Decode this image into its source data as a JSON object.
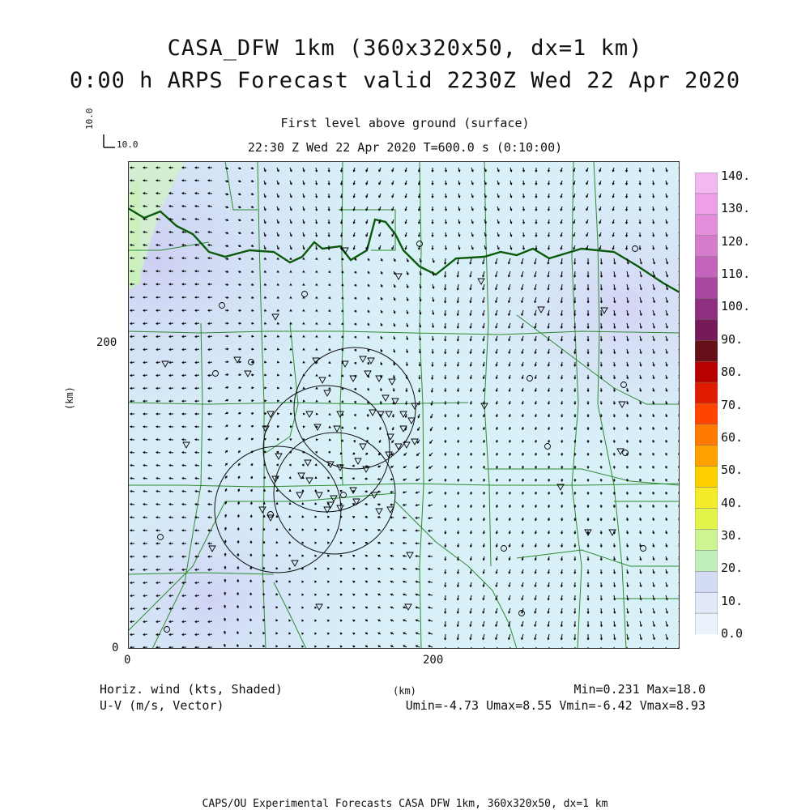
{
  "title": {
    "line1": "CASA_DFW 1km (360x320x50, dx=1 km)",
    "line2": "0:00 h ARPS Forecast valid 2230Z Wed 22 Apr 2020"
  },
  "subtitle": {
    "line1": "First level above ground (surface)",
    "line2": "22:30 Z Wed 22 Apr 2020   T=600.0 s (0:10:00)"
  },
  "reference_vector": {
    "x_label": "10.0",
    "y_label": "10.0"
  },
  "axes": {
    "x_ticks": [
      "0",
      "200"
    ],
    "y_ticks": [
      "0",
      "200"
    ],
    "x_unit": "(km)",
    "y_unit": "(km)"
  },
  "footer": {
    "left_line1": "Horiz. wind (kts, Shaded)",
    "left_line2": "U-V (m/s, Vector)",
    "right_line1": "Min=0.231 Max=18.0",
    "right_line2": "Umin=-4.73 Umax=8.55 Vmin=-6.42 Vmax=8.93"
  },
  "credit": "CAPS/OU Experimental Forecasts  CASA DFW 1km, 360x320x50, dx=1 km",
  "colorbar": {
    "labels": [
      "140.",
      "130.",
      "120.",
      "110.",
      "100.",
      "90.",
      "80.",
      "70.",
      "60.",
      "50.",
      "40.",
      "30.",
      "20.",
      "10.",
      "0.0"
    ],
    "colors": [
      "#f4b8f0",
      "#ee9fe8",
      "#e48ddc",
      "#d67ccd",
      "#c464bc",
      "#a8479f",
      "#8e2f80",
      "#761a58",
      "#651018",
      "#b80000",
      "#e01c00",
      "#ff4400",
      "#ff7a00",
      "#ffa200",
      "#ffd000",
      "#f4ec2a",
      "#e2f44a",
      "#cdf490",
      "#bfefbc",
      "#d4dcf4",
      "#e1e8f8",
      "#eaf2fc"
    ]
  },
  "map": {
    "field_colors": {
      "light": "#d8f0f8",
      "mid": "#d4dcf4",
      "green": "#d2f4c4",
      "lavender": "#cfd2f2"
    },
    "border_color": "#2e8b2e",
    "river_color": "#0a5a0a"
  }
}
